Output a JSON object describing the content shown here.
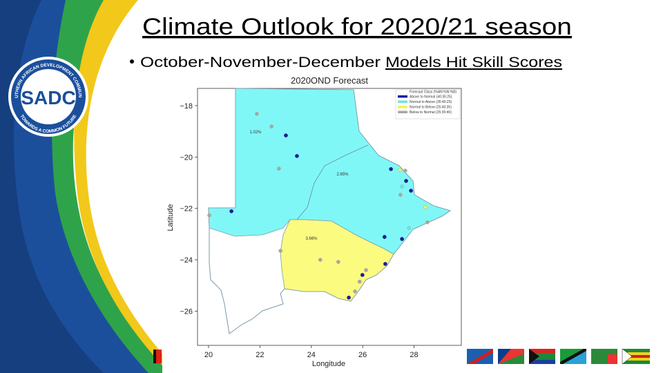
{
  "slide": {
    "title": "Climate Outlook for 2020/21 season",
    "bullet": {
      "text": "October-November-December",
      "underlined": "Models Hit Skill Scores"
    },
    "logo": {
      "ring_top": "SOUTHERN AFRICAN DEVELOPMENT COMMUNITY",
      "center": "SADC",
      "ring_bottom": "TOWARDS A COMMON FUTURE"
    }
  },
  "chart_data": {
    "type": "map",
    "title": "2020OND Forecast",
    "x_label": "Longitude",
    "y_label": "Latitude",
    "xlim": [
      19.57,
      29.84
    ],
    "ylim": [
      -27.33,
      -17.33
    ],
    "xticks": [
      20,
      22,
      24,
      26,
      28
    ],
    "yticks": [
      {
        "value": -18,
        "label": "−18"
      },
      {
        "value": -20,
        "label": "−20"
      },
      {
        "value": -22,
        "label": "−22"
      },
      {
        "value": -24,
        "label": "−24"
      },
      {
        "value": -26,
        "label": "−26"
      }
    ],
    "legend_title": "Forecast Class (%AN:%N:%B)",
    "legend": "upper right",
    "annotations": [
      "1.02%",
      "2.65%",
      "3.66%"
    ],
    "series": [
      {
        "name": "Above to Normal (40:35:25)",
        "color": "#1c1c9c",
        "x": [
          23.01,
          23.44,
          20.89,
          27.1,
          27.69,
          27.88,
          26.85,
          27.53,
          26.88,
          25.99,
          25.46
        ],
        "y": [
          -19.16,
          -19.96,
          -22.11,
          -20.47,
          -20.93,
          -21.31,
          -23.11,
          -23.19,
          -24.16,
          -24.59,
          -25.47
        ]
      },
      {
        "name": "Normal to Above (35:40:25)",
        "color": "#6fe3e3",
        "x": [
          27.53,
          27.8
        ],
        "y": [
          -21.15,
          -22.76
        ]
      },
      {
        "name": "Normal to Below (25:40:35)",
        "color": "#f2f25a",
        "x": [
          27.45,
          28.44
        ],
        "y": [
          -20.5,
          -21.95
        ]
      },
      {
        "name": "Below to Normal (25:35:40)",
        "color": "#a8a8a0",
        "x": [
          21.88,
          22.45,
          22.74,
          20.03,
          27.66,
          27.47,
          28.52,
          22.8,
          24.35,
          25.05,
          26.13,
          25.88,
          25.7
        ],
        "y": [
          -18.32,
          -18.81,
          -20.45,
          -22.27,
          -20.53,
          -21.47,
          -22.54,
          -23.65,
          -24.0,
          -24.08,
          -24.4,
          -24.85,
          -25.23
        ]
      }
    ]
  }
}
